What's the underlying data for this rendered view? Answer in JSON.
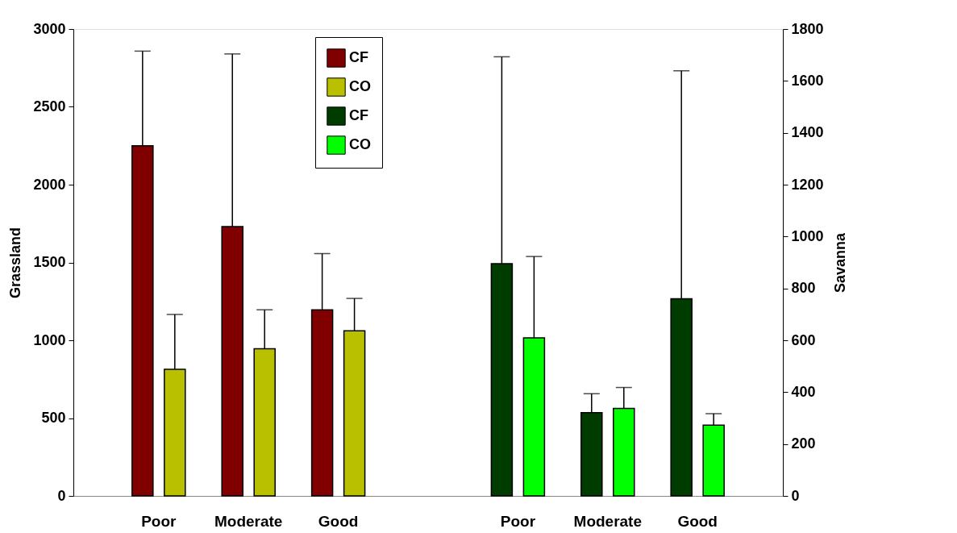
{
  "chart_data": {
    "type": "bar",
    "categories": [
      "Poor",
      "Moderate",
      "Good",
      null,
      "Poor",
      "Moderate",
      "Good"
    ],
    "ylabel": "Grassland",
    "y2label": "Savanna",
    "ylim": [
      0,
      3000
    ],
    "yticks": [
      0,
      500,
      1000,
      1500,
      2000,
      2500,
      3000
    ],
    "y2lim": [
      0,
      1800
    ],
    "y2ticks": [
      0,
      200,
      400,
      600,
      800,
      1000,
      1200,
      1400,
      1600,
      1800
    ],
    "grid": false,
    "legend": "top",
    "series": [
      {
        "name": "CF",
        "color": "#800000",
        "values": [
          2250,
          1730,
          1196,
          null,
          null,
          null,
          null
        ],
        "errors": [
          [
            2250,
            2858
          ],
          [
            1730,
            2840
          ],
          [
            1196,
            1557
          ],
          null,
          null,
          null,
          null
        ]
      },
      {
        "name": "CO",
        "color": "#b8c000",
        "values": [
          814,
          945,
          1061,
          null,
          null,
          null,
          null
        ],
        "errors": [
          [
            814,
            1166
          ],
          [
            945,
            1196
          ],
          [
            1061,
            1269
          ],
          null,
          null,
          null,
          null
        ]
      },
      {
        "name": "CF",
        "color": "#003c00",
        "axis": "y2",
        "values": [
          null,
          null,
          null,
          null,
          895,
          321,
          760
        ],
        "errors": [
          null,
          null,
          null,
          null,
          [
            895,
            1693
          ],
          [
            321,
            394
          ],
          [
            760,
            1639
          ]
        ]
      },
      {
        "name": "CO",
        "color": "#00ff00",
        "axis": "y2",
        "values": [
          null,
          null,
          null,
          null,
          609,
          337,
          273
        ],
        "errors": [
          null,
          null,
          null,
          null,
          [
            609,
            923
          ],
          [
            337,
            418
          ],
          [
            273,
            317
          ]
        ]
      }
    ]
  }
}
